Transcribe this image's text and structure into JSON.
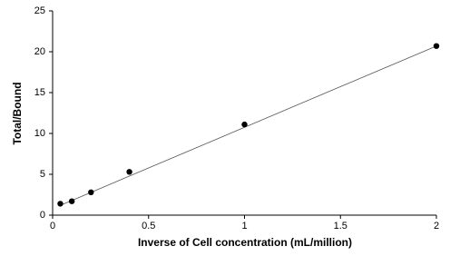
{
  "chart_data": {
    "type": "scatter",
    "x_label": "Inverse of Cell concentration (mL/million)",
    "y_label": "Total/Bound",
    "x": [
      0.04,
      0.1,
      0.2,
      0.4,
      1.0,
      2.0
    ],
    "values": [
      1.4,
      1.7,
      2.8,
      5.3,
      11.1,
      20.7
    ],
    "color": "#000000",
    "trendline": {
      "x": [
        0.04,
        2.0
      ],
      "y": [
        1.2,
        20.7
      ],
      "color": "#555555"
    },
    "xlim": [
      0,
      2
    ],
    "xticks": [
      0,
      0.5,
      1,
      1.5,
      2
    ],
    "ylim": [
      0,
      25
    ],
    "yticks": [
      0,
      5,
      10,
      15,
      20,
      25
    ],
    "grid": false
  }
}
